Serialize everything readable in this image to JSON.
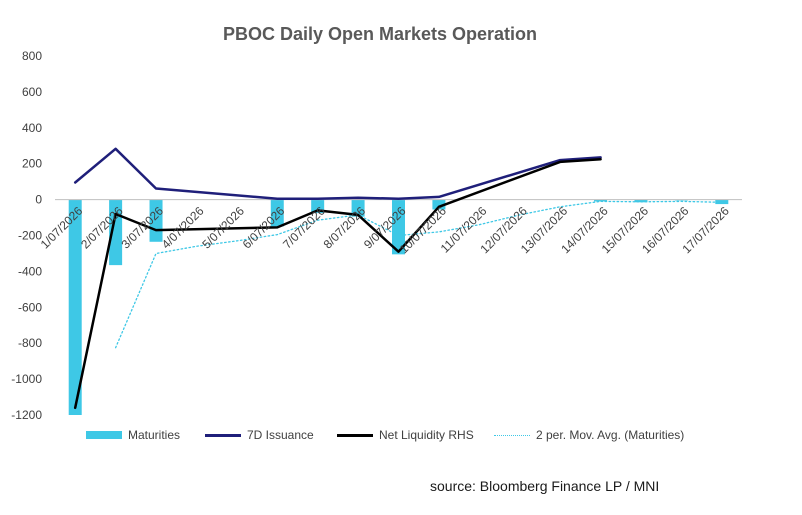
{
  "chart_data": {
    "type": "bar",
    "title": "PBOC Daily Open Markets Operation",
    "categories": [
      "1/07/2026",
      "2/07/2026",
      "3/07/2026",
      "4/07/2026",
      "5/07/2026",
      "6/07/2026",
      "7/07/2026",
      "8/07/2026",
      "9/07/2026",
      "10/07/2026",
      "11/07/2026",
      "12/07/2026",
      "13/07/2026",
      "14/07/2026",
      "15/07/2026",
      "16/07/2026",
      "17/07/2026"
    ],
    "ylim": [
      -1200,
      800
    ],
    "yticks": [
      800,
      600,
      400,
      200,
      0,
      -200,
      -400,
      -600,
      -800,
      -1000,
      -1200
    ],
    "grid": false,
    "legend_position": "bottom",
    "series": [
      {
        "name": "Maturities",
        "type": "bar",
        "values": [
          -1200,
          -365,
          -235,
          null,
          null,
          -150,
          -75,
          -95,
          -305,
          -55,
          null,
          null,
          null,
          -10,
          -15,
          -5,
          -25
        ]
      },
      {
        "name": "7D Issuance",
        "type": "line",
        "values": [
          95,
          283,
          62,
          null,
          null,
          5,
          5,
          10,
          5,
          15,
          null,
          null,
          220,
          235,
          null,
          null,
          null
        ]
      },
      {
        "name": "Net Liquidity RHS",
        "type": "line",
        "values": [
          -1160,
          -80,
          -170,
          null,
          null,
          -155,
          -60,
          -85,
          -290,
          -40,
          null,
          null,
          210,
          225,
          null,
          null,
          null
        ]
      },
      {
        "name": "2 per. Mov. Avg. (Maturities)",
        "type": "line",
        "style": "dotted",
        "values": [
          null,
          -825,
          -300,
          -260,
          -230,
          -195,
          -115,
          -85,
          -200,
          -180,
          -140,
          -85,
          -40,
          -10,
          -12,
          -10,
          -15
        ]
      }
    ]
  },
  "legend": {
    "items": [
      "Maturities",
      "7D Issuance",
      "Net Liquidity RHS",
      "2 per. Mov. Avg. (Maturities)"
    ]
  },
  "source": "source: Bloomberg Finance LP / MNI",
  "colors": {
    "maturities": "#3ec8e6",
    "issuance": "#1f1f7a",
    "net": "#000000",
    "movavg": "#3ec8e6"
  }
}
